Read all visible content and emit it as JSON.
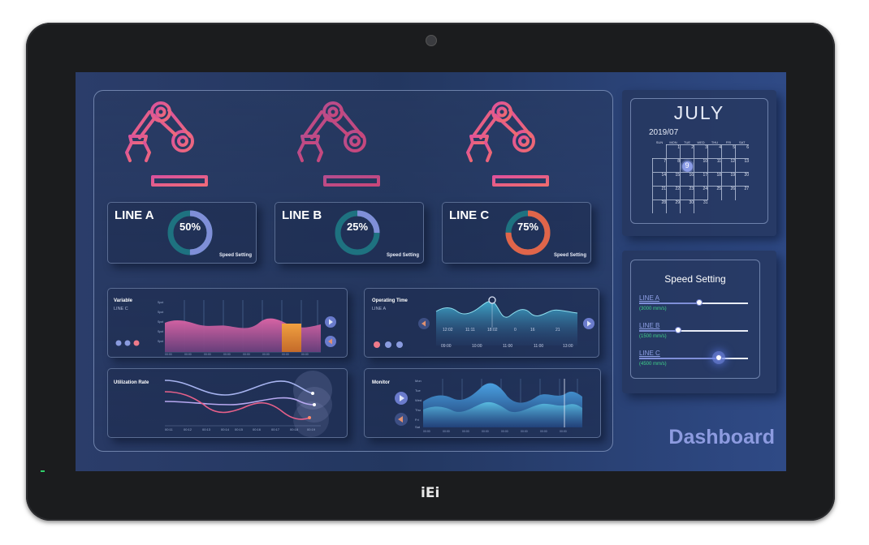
{
  "device": {
    "brand": "iEi"
  },
  "lines": [
    {
      "label": "LINE A",
      "percent_label": "50%",
      "percent": 50,
      "speed_label": "Speed Setting",
      "ring_color": "#7f8fd8"
    },
    {
      "label": "LINE B",
      "percent_label": "25%",
      "percent": 25,
      "speed_label": "Speed Setting",
      "ring_color": "#7f8fd8"
    },
    {
      "label": "LINE C",
      "percent_label": "75%",
      "percent": 75,
      "speed_label": "Speed Setting",
      "ring_color": "#e0654a"
    }
  ],
  "robot_colors": [
    "#e3549b",
    "#c0478a",
    "#e04a88"
  ],
  "variable_chart": {
    "title": "Variable",
    "subtitle": "LINE C"
  },
  "operating_chart": {
    "title": "Operating Time",
    "subtitle": "LINE A",
    "peak_labels": [
      "12:02",
      "11:11",
      "18:02",
      "0",
      "16",
      "21"
    ],
    "time_labels": [
      "09:00",
      "10:00",
      "11:00",
      "11:00",
      "13:00"
    ]
  },
  "utilization_chart": {
    "title": "Utilization Rate",
    "x_labels": [
      "00:11",
      "00:12",
      "00:13",
      "00:14",
      "00:15",
      "00:16",
      "00:17",
      "00:18",
      "00:19"
    ]
  },
  "monitor_chart": {
    "title": "Monitor",
    "days": [
      "Mon",
      "Tue",
      "Wed",
      "Thu",
      "Fri",
      "Sat"
    ]
  },
  "calendar": {
    "month": "JULY",
    "year_month": "2019/07",
    "weekdays": [
      "SUN",
      "MON",
      "TUE",
      "WED",
      "THU",
      "FRI",
      "SAT"
    ],
    "weeks": [
      [
        "",
        "1",
        "2",
        "3",
        "4",
        "5",
        "6"
      ],
      [
        "7",
        "8",
        "9",
        "10",
        "11",
        "12",
        "13"
      ],
      [
        "14",
        "15",
        "16",
        "17",
        "18",
        "19",
        "20"
      ],
      [
        "21",
        "22",
        "23",
        "24",
        "25",
        "26",
        "27"
      ],
      [
        "28",
        "29",
        "30",
        "31",
        "",
        "",
        ""
      ]
    ],
    "selected_day": "9"
  },
  "speed_setting": {
    "title": "Speed Setting",
    "lines": [
      {
        "label": "LINE A",
        "value": "(3000 mm/s)",
        "level": 0.55
      },
      {
        "label": "LINE B",
        "value": "(1500 mm/s)",
        "level": 0.36
      },
      {
        "label": "LINE C",
        "value": "(4500 mm/s)",
        "level": 0.73
      }
    ]
  },
  "page_label": "Dashboard",
  "colors": {
    "accent": "#7f8fd8",
    "green_value": "#3fd28a",
    "pink": "#e3549b",
    "orange": "#e0654a"
  }
}
